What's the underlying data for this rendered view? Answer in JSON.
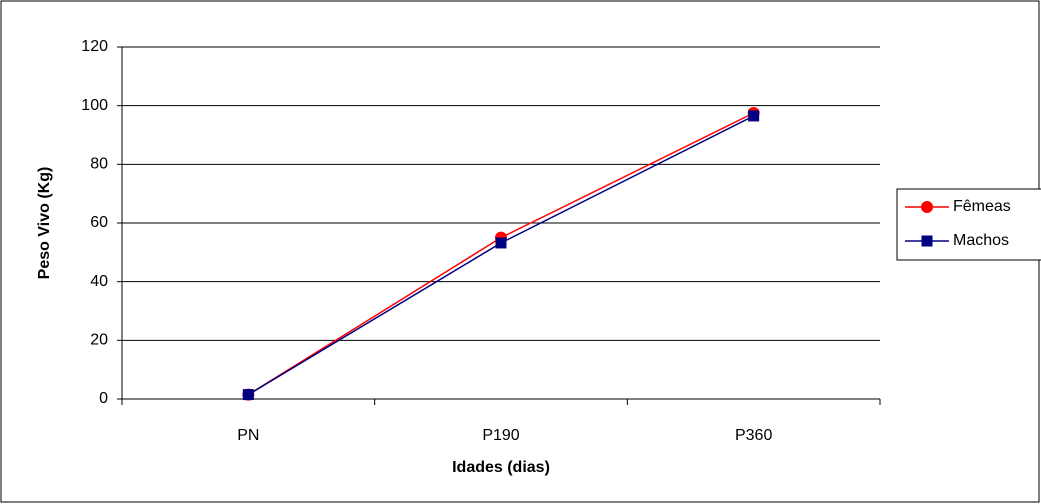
{
  "chart_data": {
    "type": "line",
    "x_label": "Idades (dias)",
    "y_label": "Peso Vivo (Kg)",
    "categories": [
      "PN",
      "P190",
      "P360"
    ],
    "series": [
      {
        "name": "Fêmeas",
        "color": "#ff0000",
        "marker": "circle",
        "values": [
          1.5,
          55,
          97.5
        ]
      },
      {
        "name": "Machos",
        "color": "#000080",
        "marker": "square",
        "values": [
          1.5,
          53.2,
          96.5
        ]
      }
    ],
    "ylim": [
      0,
      120
    ],
    "yticks": [
      0,
      20,
      40,
      60,
      80,
      100,
      120
    ],
    "grid": true,
    "legend": "right"
  }
}
